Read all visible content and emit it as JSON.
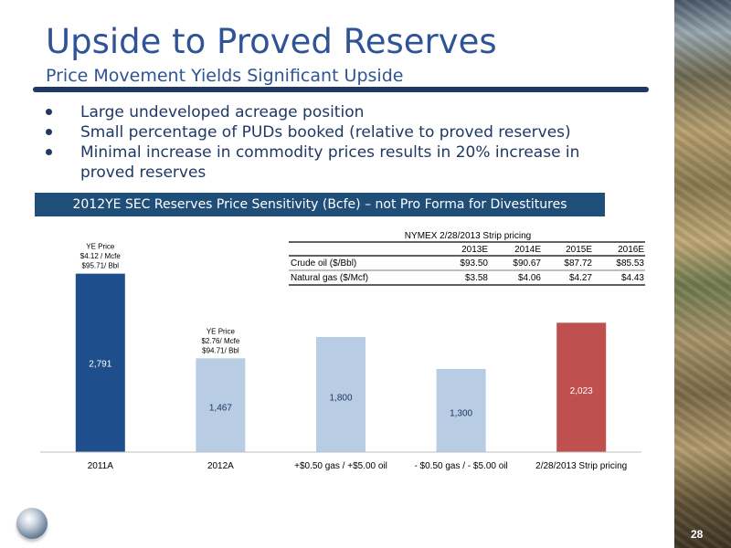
{
  "slide": {
    "title": "Upside to Proved Reserves",
    "subtitle": "Price Movement Yields Significant Upside",
    "bullets": [
      "Large undeveloped acreage position",
      "Small percentage of PUDs booked (relative to proved reserves)",
      "Minimal increase in commodity prices results in 20% increase in proved reserves"
    ],
    "banner": "2012YE SEC Reserves Price Sensitivity (Bcfe) – not Pro Forma for Divestitures",
    "page_number": "28"
  },
  "strip_table": {
    "title": "NYMEX 2/28/2013 Strip pricing",
    "columns": [
      "2013E",
      "2014E",
      "2015E",
      "2016E"
    ],
    "rows": [
      {
        "label": "Crude oil ($/Bbl)",
        "values": [
          "$93.50",
          "$90.67",
          "$87.72",
          "$85.53"
        ]
      },
      {
        "label": "Natural gas ($/Mcf)",
        "values": [
          "$3.58",
          "$4.06",
          "$4.27",
          "$4.43"
        ]
      }
    ]
  },
  "chart_data": {
    "type": "bar",
    "categories": [
      "2011A",
      "2012A",
      "+$0.50 gas / +$5.00 oil",
      "- $0.50 gas / - $5.00 oil",
      "2/28/2013 Strip pricing"
    ],
    "values": [
      2791,
      1467,
      1800,
      1300,
      2023
    ],
    "data_labels": [
      "2,791",
      "1,467",
      "1,800",
      "1,300",
      "2,023"
    ],
    "colors": [
      "#1f4e8c",
      "#b8cce4",
      "#b8cce4",
      "#b8cce4",
      "#c0504d"
    ],
    "label_colors": [
      "#ffffff",
      "#1f3864",
      "#1f3864",
      "#1f3864",
      "#ffffff"
    ],
    "ylim": [
      0,
      3000
    ],
    "grid": false,
    "annotations": [
      {
        "category": "2011A",
        "lines": [
          "YE Price",
          "$4.12 / Mcfe",
          "$95.71/ Bbl"
        ]
      },
      {
        "category": "2012A",
        "lines": [
          "YE Price",
          "$2.76/ Mcfe",
          "$94.71/ Bbl"
        ]
      }
    ]
  }
}
